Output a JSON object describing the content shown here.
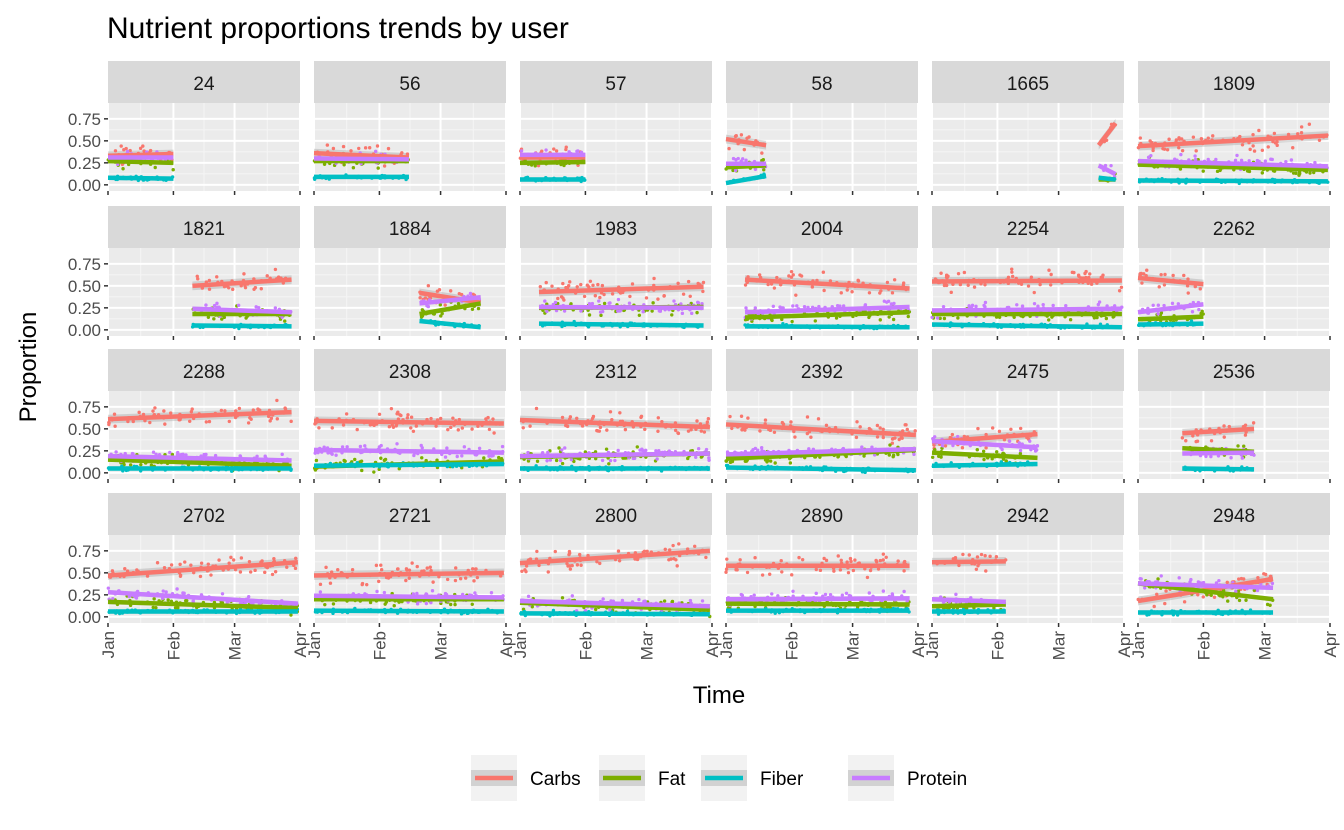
{
  "chart_data": {
    "type": "line",
    "title": "Nutrient proportions trends by user",
    "xlabel": "Time",
    "ylabel": "Proportion",
    "xlim": [
      "2024-01-01",
      "2024-04-01"
    ],
    "ylim": [
      -0.07,
      0.93
    ],
    "xticks": [
      {
        "date": "2024-01-01",
        "label": "Jan"
      },
      {
        "date": "2024-02-01",
        "label": "Feb"
      },
      {
        "date": "2024-03-01",
        "label": "Mar"
      },
      {
        "date": "2024-04-01",
        "label": "Apr"
      }
    ],
    "yticks": [
      {
        "value": 0.75,
        "label": "0.75"
      },
      {
        "value": 0.5,
        "label": "0.50"
      },
      {
        "value": 0.25,
        "label": "0.25"
      },
      {
        "value": 0,
        "label": "0.00"
      }
    ],
    "grid": true,
    "legend": {
      "position": "bottom"
    },
    "series": [
      {
        "name": "Carbs",
        "color": "#F8766D"
      },
      {
        "name": "Fat",
        "color": "#7CAE00"
      },
      {
        "name": "Fiber",
        "color": "#00BFC4"
      },
      {
        "name": "Protein",
        "color": "#C77CFF"
      }
    ],
    "panels": [
      {
        "label": "24",
        "x_range": [
          "2024-01-01",
          "2024-02-01"
        ],
        "trends": {
          "Carbs": [
            0.33,
            0.35
          ],
          "Fat": [
            0.27,
            0.25
          ],
          "Fiber": [
            0.08,
            0.07
          ],
          "Protein": [
            0.31,
            0.31
          ]
        }
      },
      {
        "label": "56",
        "x_range": [
          "2024-01-01",
          "2024-02-15"
        ],
        "trends": {
          "Carbs": [
            0.36,
            0.31
          ],
          "Fat": [
            0.27,
            0.27
          ],
          "Fiber": [
            0.09,
            0.09
          ],
          "Protein": [
            0.3,
            0.29
          ]
        }
      },
      {
        "label": "57",
        "x_range": [
          "2024-01-01",
          "2024-02-01"
        ],
        "trends": {
          "Carbs": [
            0.31,
            0.31
          ],
          "Fat": [
            0.25,
            0.26
          ],
          "Fiber": [
            0.06,
            0.06
          ],
          "Protein": [
            0.34,
            0.34
          ]
        }
      },
      {
        "label": "58",
        "x_range": [
          "2024-01-01",
          "2024-01-20"
        ],
        "trends": {
          "Carbs": [
            0.52,
            0.45
          ],
          "Fat": [
            0.2,
            0.22
          ],
          "Fiber": [
            0.02,
            0.1
          ],
          "Protein": [
            0.24,
            0.24
          ]
        }
      },
      {
        "label": "1665",
        "x_range": [
          "2024-03-20",
          "2024-03-28"
        ],
        "trends": {
          "Carbs": [
            0.45,
            0.7
          ],
          "Fat": [
            0.06,
            0.06
          ],
          "Fiber": [
            0.08,
            0.06
          ],
          "Protein": [
            0.22,
            0.12
          ]
        }
      },
      {
        "label": "1809",
        "x_range": [
          "2024-01-01",
          "2024-03-31"
        ],
        "trends": {
          "Carbs": [
            0.44,
            0.56
          ],
          "Fat": [
            0.23,
            0.17
          ],
          "Fiber": [
            0.05,
            0.04
          ],
          "Protein": [
            0.27,
            0.21
          ]
        }
      },
      {
        "label": "1821",
        "x_range": [
          "2024-02-10",
          "2024-03-28"
        ],
        "trends": {
          "Carbs": [
            0.5,
            0.57
          ],
          "Fat": [
            0.18,
            0.18
          ],
          "Fiber": [
            0.05,
            0.04
          ],
          "Protein": [
            0.24,
            0.2
          ]
        }
      },
      {
        "label": "1884",
        "x_range": [
          "2024-02-20",
          "2024-03-20"
        ],
        "trends": {
          "Carbs": [
            0.42,
            0.31
          ],
          "Fat": [
            0.18,
            0.3
          ],
          "Fiber": [
            0.1,
            0.03
          ],
          "Protein": [
            0.3,
            0.37
          ]
        }
      },
      {
        "label": "1983",
        "x_range": [
          "2024-01-10",
          "2024-03-28"
        ],
        "trends": {
          "Carbs": [
            0.43,
            0.49
          ],
          "Fat": [
            0.25,
            0.26
          ],
          "Fiber": [
            0.07,
            0.05
          ],
          "Protein": [
            0.26,
            0.25
          ]
        }
      },
      {
        "label": "2004",
        "x_range": [
          "2024-01-10",
          "2024-03-28"
        ],
        "trends": {
          "Carbs": [
            0.57,
            0.47
          ],
          "Fat": [
            0.14,
            0.2
          ],
          "Fiber": [
            0.04,
            0.03
          ],
          "Protein": [
            0.2,
            0.26
          ]
        }
      },
      {
        "label": "2254",
        "x_range": [
          "2024-01-01",
          "2024-03-31"
        ],
        "trends": {
          "Carbs": [
            0.55,
            0.56
          ],
          "Fat": [
            0.18,
            0.18
          ],
          "Fiber": [
            0.06,
            0.03
          ],
          "Protein": [
            0.22,
            0.24
          ]
        }
      },
      {
        "label": "2262",
        "x_range": [
          "2024-01-01",
          "2024-02-01"
        ],
        "trends": {
          "Carbs": [
            0.59,
            0.52
          ],
          "Fat": [
            0.12,
            0.15
          ],
          "Fiber": [
            0.06,
            0.07
          ],
          "Protein": [
            0.2,
            0.29
          ]
        }
      },
      {
        "label": "2288",
        "x_range": [
          "2024-01-01",
          "2024-03-28"
        ],
        "trends": {
          "Carbs": [
            0.61,
            0.69
          ],
          "Fat": [
            0.15,
            0.08
          ],
          "Fiber": [
            0.05,
            0.05
          ],
          "Protein": [
            0.19,
            0.14
          ]
        }
      },
      {
        "label": "2308",
        "x_range": [
          "2024-01-01",
          "2024-03-31"
        ],
        "trends": {
          "Carbs": [
            0.59,
            0.56
          ],
          "Fat": [
            0.07,
            0.13
          ],
          "Fiber": [
            0.08,
            0.1
          ],
          "Protein": [
            0.26,
            0.23
          ]
        }
      },
      {
        "label": "2312",
        "x_range": [
          "2024-01-01",
          "2024-03-31"
        ],
        "trends": {
          "Carbs": [
            0.6,
            0.52
          ],
          "Fat": [
            0.18,
            0.22
          ],
          "Fiber": [
            0.05,
            0.05
          ],
          "Protein": [
            0.19,
            0.22
          ]
        }
      },
      {
        "label": "2392",
        "x_range": [
          "2024-01-01",
          "2024-03-31"
        ],
        "trends": {
          "Carbs": [
            0.55,
            0.43
          ],
          "Fat": [
            0.16,
            0.26
          ],
          "Fiber": [
            0.06,
            0.03
          ],
          "Protein": [
            0.21,
            0.27
          ]
        }
      },
      {
        "label": "2475",
        "x_range": [
          "2024-01-01",
          "2024-02-20"
        ],
        "trends": {
          "Carbs": [
            0.35,
            0.44
          ],
          "Fat": [
            0.23,
            0.17
          ],
          "Fiber": [
            0.08,
            0.1
          ],
          "Protein": [
            0.36,
            0.29
          ]
        }
      },
      {
        "label": "2536",
        "x_range": [
          "2024-01-22",
          "2024-02-25"
        ],
        "trends": {
          "Carbs": [
            0.45,
            0.5
          ],
          "Fat": [
            0.28,
            0.24
          ],
          "Fiber": [
            0.05,
            0.04
          ],
          "Protein": [
            0.22,
            0.23
          ]
        }
      },
      {
        "label": "2702",
        "x_range": [
          "2024-01-01",
          "2024-03-31"
        ],
        "trends": {
          "Carbs": [
            0.47,
            0.62
          ],
          "Fat": [
            0.17,
            0.1
          ],
          "Fiber": [
            0.06,
            0.06
          ],
          "Protein": [
            0.28,
            0.15
          ]
        }
      },
      {
        "label": "2721",
        "x_range": [
          "2024-01-01",
          "2024-03-31"
        ],
        "trends": {
          "Carbs": [
            0.47,
            0.5
          ],
          "Fat": [
            0.2,
            0.2
          ],
          "Fiber": [
            0.07,
            0.06
          ],
          "Protein": [
            0.24,
            0.22
          ]
        }
      },
      {
        "label": "2800",
        "x_range": [
          "2024-01-01",
          "2024-03-31"
        ],
        "trends": {
          "Carbs": [
            0.61,
            0.75
          ],
          "Fat": [
            0.16,
            0.08
          ],
          "Fiber": [
            0.04,
            0.03
          ],
          "Protein": [
            0.18,
            0.12
          ]
        }
      },
      {
        "label": "2890",
        "x_range": [
          "2024-01-01",
          "2024-03-28"
        ],
        "trends": {
          "Carbs": [
            0.58,
            0.58
          ],
          "Fat": [
            0.15,
            0.14
          ],
          "Fiber": [
            0.07,
            0.07
          ],
          "Protein": [
            0.2,
            0.21
          ]
        }
      },
      {
        "label": "2942",
        "x_range": [
          "2024-01-01",
          "2024-02-05"
        ],
        "trends": {
          "Carbs": [
            0.62,
            0.63
          ],
          "Fat": [
            0.12,
            0.14
          ],
          "Fiber": [
            0.06,
            0.06
          ],
          "Protein": [
            0.2,
            0.17
          ]
        }
      },
      {
        "label": "2948",
        "x_range": [
          "2024-01-01",
          "2024-03-05"
        ],
        "trends": {
          "Carbs": [
            0.18,
            0.43
          ],
          "Fat": [
            0.38,
            0.2
          ],
          "Fiber": [
            0.05,
            0.05
          ],
          "Protein": [
            0.38,
            0.33
          ]
        }
      }
    ]
  }
}
